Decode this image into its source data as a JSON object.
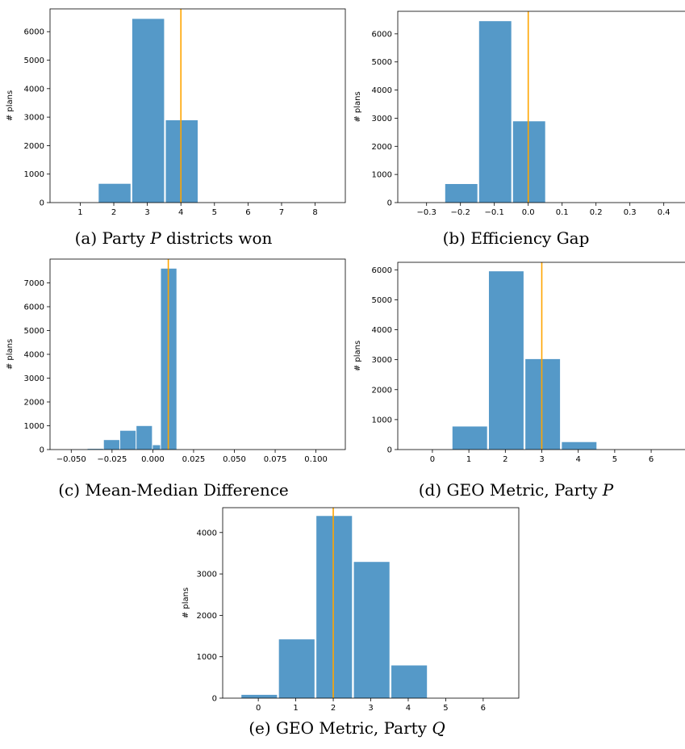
{
  "chart_data": [
    {
      "id": "a",
      "type": "bar",
      "caption": {
        "prefix": "(a) Party ",
        "italic": "P",
        "suffix": " districts won"
      },
      "ylabel": "# plans",
      "xlim": [
        0.1,
        8.9
      ],
      "ylim": [
        0,
        6800
      ],
      "xticks": [
        1,
        2,
        3,
        4,
        5,
        6,
        7,
        8
      ],
      "xtick_labels": [
        "1",
        "2",
        "3",
        "4",
        "5",
        "6",
        "7",
        "8"
      ],
      "yticks": [
        0,
        1000,
        2000,
        3000,
        4000,
        5000,
        6000
      ],
      "ytick_labels": [
        "0",
        "1000",
        "2000",
        "3000",
        "4000",
        "5000",
        "6000"
      ],
      "bars": [
        {
          "x0": 1.55,
          "x1": 2.5,
          "value": 660
        },
        {
          "x0": 2.55,
          "x1": 3.5,
          "value": 6450
        },
        {
          "x0": 3.55,
          "x1": 4.5,
          "value": 2890
        }
      ],
      "vline": 4,
      "bar_color": "#5599c8",
      "line_color": "#ffa500"
    },
    {
      "id": "b",
      "type": "bar",
      "caption": {
        "prefix": "(b) Efficiency Gap",
        "italic": "",
        "suffix": ""
      },
      "ylabel": "# plans",
      "xlim": [
        -0.385,
        0.465
      ],
      "ylim": [
        0,
        6800
      ],
      "xticks": [
        -0.3,
        -0.2,
        -0.1,
        0.0,
        0.1,
        0.2,
        0.3,
        0.4
      ],
      "xtick_labels": [
        "−0.3",
        "−0.2",
        "−0.1",
        "0.0",
        "0.1",
        "0.2",
        "0.3",
        "0.4"
      ],
      "yticks": [
        0,
        1000,
        2000,
        3000,
        4000,
        5000,
        6000
      ],
      "ytick_labels": [
        "0",
        "1000",
        "2000",
        "3000",
        "4000",
        "5000",
        "6000"
      ],
      "bars": [
        {
          "x0": -0.245,
          "x1": -0.15,
          "value": 660
        },
        {
          "x0": -0.145,
          "x1": -0.05,
          "value": 6450
        },
        {
          "x0": -0.045,
          "x1": 0.05,
          "value": 2890
        }
      ],
      "vline": 0.0,
      "bar_color": "#5599c8",
      "line_color": "#ffa500"
    },
    {
      "id": "c",
      "type": "bar",
      "caption": {
        "prefix": "(c) Mean-Median Difference",
        "italic": "",
        "suffix": ""
      },
      "ylabel": "# plans",
      "xlim": [
        -0.063,
        0.118
      ],
      "ylim": [
        0,
        8000
      ],
      "xticks": [
        -0.05,
        -0.025,
        0.0,
        0.025,
        0.05,
        0.075,
        0.1
      ],
      "xtick_labels": [
        "−0.050",
        "−0.025",
        "0.000",
        "0.025",
        "0.050",
        "0.075",
        "0.100"
      ],
      "yticks": [
        0,
        1000,
        2000,
        3000,
        4000,
        5000,
        6000,
        7000
      ],
      "ytick_labels": [
        "0",
        "1000",
        "2000",
        "3000",
        "4000",
        "5000",
        "6000",
        "7000"
      ],
      "bars": [
        {
          "x0": -0.05,
          "x1": -0.0405,
          "value": 5
        },
        {
          "x0": -0.04,
          "x1": -0.0305,
          "value": 30
        },
        {
          "x0": -0.03,
          "x1": -0.0205,
          "value": 400
        },
        {
          "x0": -0.02,
          "x1": -0.0105,
          "value": 790
        },
        {
          "x0": -0.01,
          "x1": -0.0005,
          "value": 990
        },
        {
          "x0": 0.0,
          "x1": 0.0045,
          "value": 185
        },
        {
          "x0": 0.005,
          "x1": 0.0145,
          "value": 7600
        }
      ],
      "vline": 0.0095,
      "bar_color": "#5599c8",
      "line_color": "#ffa500"
    },
    {
      "id": "d",
      "type": "bar",
      "caption": {
        "prefix": "(d) GEO Metric, Party ",
        "italic": "P",
        "suffix": ""
      },
      "ylabel": "# plans",
      "xlim": [
        -0.95,
        6.95
      ],
      "ylim": [
        0,
        6250
      ],
      "xticks": [
        0,
        1,
        2,
        3,
        4,
        5,
        6
      ],
      "xtick_labels": [
        "0",
        "1",
        "2",
        "3",
        "4",
        "5",
        "6"
      ],
      "yticks": [
        0,
        1000,
        2000,
        3000,
        4000,
        5000,
        6000
      ],
      "ytick_labels": [
        "0",
        "1000",
        "2000",
        "3000",
        "4000",
        "5000",
        "6000"
      ],
      "bars": [
        {
          "x0": 0.55,
          "x1": 1.5,
          "value": 770
        },
        {
          "x0": 1.55,
          "x1": 2.5,
          "value": 5950
        },
        {
          "x0": 2.55,
          "x1": 3.5,
          "value": 3020
        },
        {
          "x0": 3.55,
          "x1": 4.5,
          "value": 250
        }
      ],
      "vline": 3,
      "bar_color": "#5599c8",
      "line_color": "#ffa500"
    },
    {
      "id": "e",
      "type": "bar",
      "caption": {
        "prefix": "(e) GEO Metric, Party ",
        "italic": "Q",
        "suffix": ""
      },
      "ylabel": "# plans",
      "xlim": [
        -0.95,
        6.95
      ],
      "ylim": [
        0,
        4600
      ],
      "xticks": [
        0,
        1,
        2,
        3,
        4,
        5,
        6
      ],
      "xtick_labels": [
        "0",
        "1",
        "2",
        "3",
        "4",
        "5",
        "6"
      ],
      "yticks": [
        0,
        1000,
        2000,
        3000,
        4000
      ],
      "ytick_labels": [
        "0",
        "1000",
        "2000",
        "3000",
        "4000"
      ],
      "bars": [
        {
          "x0": -0.45,
          "x1": 0.5,
          "value": 80
        },
        {
          "x0": 0.55,
          "x1": 1.5,
          "value": 1420
        },
        {
          "x0": 1.55,
          "x1": 2.5,
          "value": 4400
        },
        {
          "x0": 2.55,
          "x1": 3.5,
          "value": 3290
        },
        {
          "x0": 3.55,
          "x1": 4.5,
          "value": 790
        }
      ],
      "vline": 2,
      "bar_color": "#5599c8",
      "line_color": "#ffa500"
    }
  ]
}
